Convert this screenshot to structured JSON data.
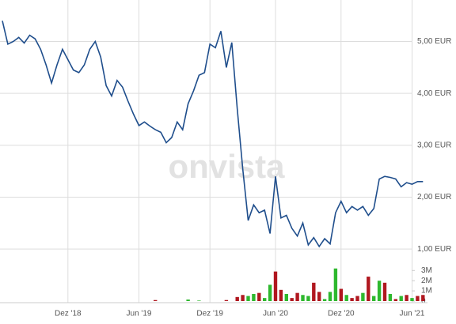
{
  "watermark": "onvista",
  "chart_data": [
    {
      "type": "line",
      "color": "#1f4e8c",
      "values": [
        5.4,
        4.95,
        5.0,
        5.08,
        4.97,
        5.12,
        5.05,
        4.85,
        4.55,
        4.2,
        4.55,
        4.85,
        4.65,
        4.45,
        4.4,
        4.55,
        4.85,
        5.0,
        4.7,
        4.15,
        3.95,
        4.25,
        4.12,
        3.85,
        3.6,
        3.38,
        3.45,
        3.37,
        3.3,
        3.25,
        3.05,
        3.15,
        3.45,
        3.3,
        3.8,
        4.05,
        4.35,
        4.4,
        4.95,
        4.88,
        5.2,
        4.5,
        4.98,
        3.7,
        2.55,
        1.55,
        1.85,
        1.7,
        1.75,
        1.3,
        2.4,
        1.6,
        1.65,
        1.4,
        1.25,
        1.5,
        1.08,
        1.22,
        1.05,
        1.2,
        1.1,
        1.7,
        1.92,
        1.7,
        1.82,
        1.75,
        1.82,
        1.65,
        1.78,
        2.35,
        2.4,
        2.38,
        2.35,
        2.2,
        2.28,
        2.25,
        2.3,
        2.3
      ],
      "ylim": [
        0.85,
        5.8
      ],
      "yticks": [
        {
          "value": 1,
          "label": "1,00 EUR"
        },
        {
          "value": 2,
          "label": "2,00 EUR"
        },
        {
          "value": 3,
          "label": "3,00 EUR"
        },
        {
          "value": 4,
          "label": "4,00 EUR"
        },
        {
          "value": 5,
          "label": "5,00 EUR"
        }
      ],
      "grid": true
    },
    {
      "type": "bar",
      "categories": [
        null,
        null,
        null,
        null,
        null,
        null,
        null,
        null,
        null,
        null,
        null,
        null,
        "Dez '18",
        null,
        null,
        null,
        null,
        null,
        null,
        null,
        null,
        null,
        null,
        null,
        null,
        "Jun '19",
        null,
        null,
        null,
        null,
        null,
        null,
        null,
        null,
        null,
        null,
        null,
        null,
        "Dez '19",
        null,
        null,
        null,
        null,
        null,
        null,
        null,
        null,
        null,
        null,
        null,
        "Jun '20",
        null,
        null,
        null,
        null,
        null,
        null,
        null,
        null,
        null,
        null,
        null,
        "Dez '20",
        null,
        null,
        null,
        null,
        null,
        null,
        null,
        null,
        null,
        null,
        null,
        null,
        "Jun '21",
        null,
        null
      ],
      "values": [
        0,
        0,
        0,
        0,
        0,
        0,
        0,
        0,
        0,
        0,
        0,
        0,
        0,
        0,
        0,
        0,
        0,
        0,
        0,
        0,
        0,
        0,
        0,
        0,
        0,
        0,
        0,
        0,
        100000,
        0,
        0,
        0,
        0,
        0,
        150000,
        0,
        50000,
        0,
        0,
        0,
        0,
        100000,
        0,
        400000,
        600000,
        500000,
        700000,
        800000,
        300000,
        1600000,
        2900000,
        1100000,
        700000,
        300000,
        800000,
        600000,
        500000,
        1800000,
        900000,
        200000,
        900000,
        3200000,
        1200000,
        600000,
        300000,
        500000,
        800000,
        2400000,
        500000,
        2000000,
        1800000,
        700000,
        200000,
        500000,
        600000,
        300000,
        500000,
        600000
      ],
      "colors": [
        "#b0171f",
        "#b0171f",
        "#b0171f",
        "#b0171f",
        "#b0171f",
        "#b0171f",
        "#b0171f",
        "#b0171f",
        "#b0171f",
        "#b0171f",
        "#b0171f",
        "#b0171f",
        "#b0171f",
        "#b0171f",
        "#b0171f",
        "#b0171f",
        "#b0171f",
        "#b0171f",
        "#b0171f",
        "#b0171f",
        "#b0171f",
        "#b0171f",
        "#b0171f",
        "#b0171f",
        "#b0171f",
        "#b0171f",
        "#b0171f",
        "#b0171f",
        "#b0171f",
        "#b0171f",
        "#b0171f",
        "#b0171f",
        "#b0171f",
        "#b0171f",
        "#2eb82e",
        "#b0171f",
        "#2eb82e",
        "#b0171f",
        "#b0171f",
        "#b0171f",
        "#b0171f",
        "#b0171f",
        "#b0171f",
        "#b0171f",
        "#b0171f",
        "#2eb82e",
        "#2eb82e",
        "#b0171f",
        "#2eb82e",
        "#2eb82e",
        "#b0171f",
        "#b0171f",
        "#2eb82e",
        "#b0171f",
        "#b0171f",
        "#2eb82e",
        "#2eb82e",
        "#b0171f",
        "#b0171f",
        "#2eb82e",
        "#2eb82e",
        "#2eb82e",
        "#b0171f",
        "#2eb82e",
        "#b0171f",
        "#b0171f",
        "#2eb82e",
        "#b0171f",
        "#2eb82e",
        "#2eb82e",
        "#b0171f",
        "#2eb82e",
        "#b0171f",
        "#2eb82e",
        "#b0171f",
        "#2eb82e",
        "#b0171f",
        "#b0171f"
      ],
      "ylim": [
        0,
        3800000
      ],
      "yticks": [
        0,
        {
          "value": 1000000,
          "label": "1M"
        },
        {
          "value": 2000000,
          "label": "2M"
        },
        {
          "value": 3000000,
          "label": "3M"
        }
      ]
    }
  ]
}
